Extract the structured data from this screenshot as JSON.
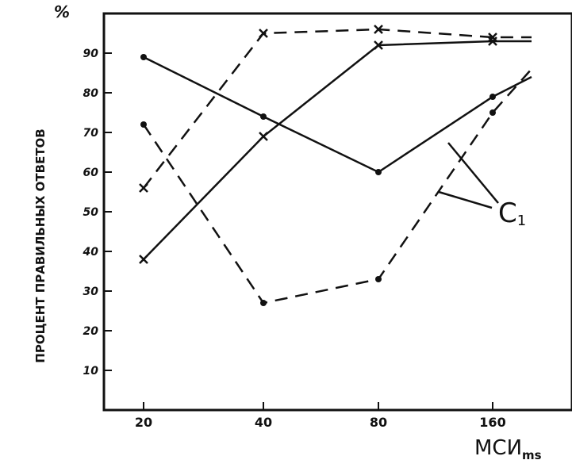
{
  "chart_data": {
    "type": "line",
    "x_scale": "categorical (doubling)",
    "categories": [
      "20",
      "40",
      "80",
      "160"
    ],
    "y_unit_label": "%",
    "ylabel": "ПРОЦЕНТ ПРАВИЛЬНЫХ ОТВЕТОВ",
    "xlabel": "МСИ",
    "xlabel_sub": "ms",
    "y_ticks": [
      "10",
      "20",
      "30",
      "40",
      "50",
      "60",
      "70",
      "80",
      "90"
    ],
    "ylim": [
      0,
      100
    ],
    "grid": false,
    "annotation": "C",
    "annotation_sub": "1",
    "series": [
      {
        "marker": "x",
        "style": "dashed",
        "values": [
          56,
          95,
          96,
          94
        ],
        "tail": [
          170,
          94
        ]
      },
      {
        "marker": "x",
        "style": "solid",
        "values": [
          38,
          69,
          92,
          93
        ],
        "tail": [
          170,
          93
        ]
      },
      {
        "marker": "dot",
        "style": "solid",
        "values": [
          89,
          74,
          60,
          79
        ],
        "tail": [
          170,
          84
        ]
      },
      {
        "marker": "dot",
        "style": "dashed",
        "values": [
          72,
          27,
          33,
          75
        ],
        "tail": [
          170,
          86
        ]
      }
    ]
  }
}
